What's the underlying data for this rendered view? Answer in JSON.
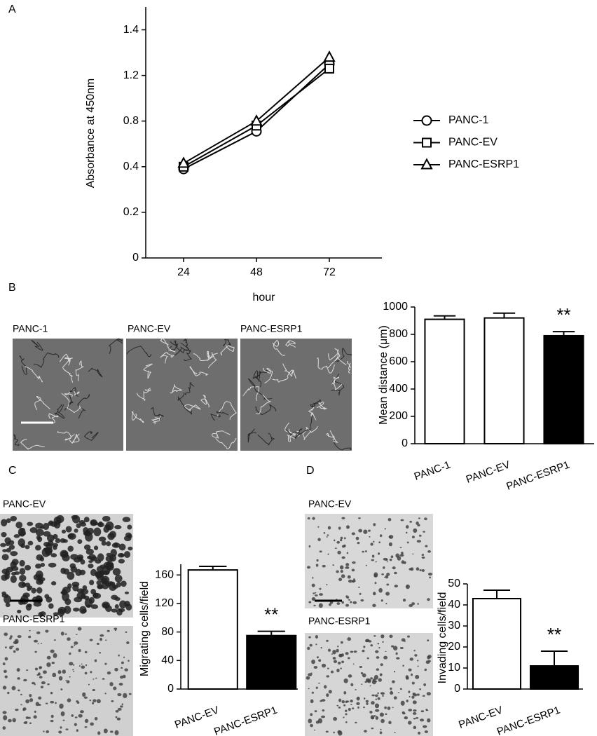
{
  "panel_labels": [
    "A",
    "B",
    "C",
    "D"
  ],
  "micrographs": {
    "b": [
      "PANC-1",
      "PANC-EV",
      "PANC-ESRP1"
    ],
    "c": [
      "PANC-EV",
      "PANC-ESRP1"
    ],
    "d": [
      "PANC-EV",
      "PANC-ESRP1"
    ]
  },
  "chart_data": [
    {
      "type": "line",
      "x_label": "hour",
      "y_label": "Absorbance at 450nm",
      "categories": [
        "24",
        "48",
        "72"
      ],
      "series": [
        {
          "name": "PANC-1",
          "color": "#000000",
          "marker": "circle",
          "values": [
            0.39,
            0.71,
            1.25
          ]
        },
        {
          "name": "PANC-EV",
          "color": "#000000",
          "marker": "square",
          "values": [
            0.4,
            0.76,
            1.23
          ]
        },
        {
          "name": "PANC-ESRP1",
          "color": "#000000",
          "marker": "triangle",
          "values": [
            0.43,
            0.8,
            1.28
          ]
        }
      ],
      "ylim": [
        0,
        1.5
      ],
      "yticks": [
        0,
        0.2,
        0.4,
        0.8,
        1.2,
        1.4
      ],
      "legend": "right"
    },
    {
      "type": "bar",
      "y_label": "Mean distance (μm)",
      "categories": [
        "PANC-1",
        "PANC-EV",
        "PANC-ESRP1"
      ],
      "values": [
        910,
        920,
        790
      ],
      "errors": [
        25,
        35,
        30
      ],
      "colors": [
        "#ffffff",
        "#ffffff",
        "#000000"
      ],
      "annotation": "**",
      "ylim": [
        0,
        1000
      ],
      "yticks": [
        0,
        200,
        400,
        600,
        800,
        1000
      ]
    },
    {
      "type": "bar",
      "y_label": "Migrating cells/field",
      "categories": [
        "PANC-EV",
        "PANC-ESRP1"
      ],
      "values": [
        167,
        75
      ],
      "errors": [
        5,
        6
      ],
      "colors": [
        "#ffffff",
        "#000000"
      ],
      "annotation": "**",
      "ylim": [
        0,
        175
      ],
      "yticks": [
        0,
        40,
        80,
        120,
        160
      ]
    },
    {
      "type": "bar",
      "y_label": "Invading cells/field",
      "categories": [
        "PANC-EV",
        "PANC-ESRP1"
      ],
      "values": [
        43,
        11
      ],
      "errors": [
        4,
        7
      ],
      "colors": [
        "#ffffff",
        "#000000"
      ],
      "annotation": "**",
      "ylim": [
        0,
        50
      ],
      "yticks": [
        0,
        10,
        20,
        30,
        40,
        50
      ]
    }
  ]
}
